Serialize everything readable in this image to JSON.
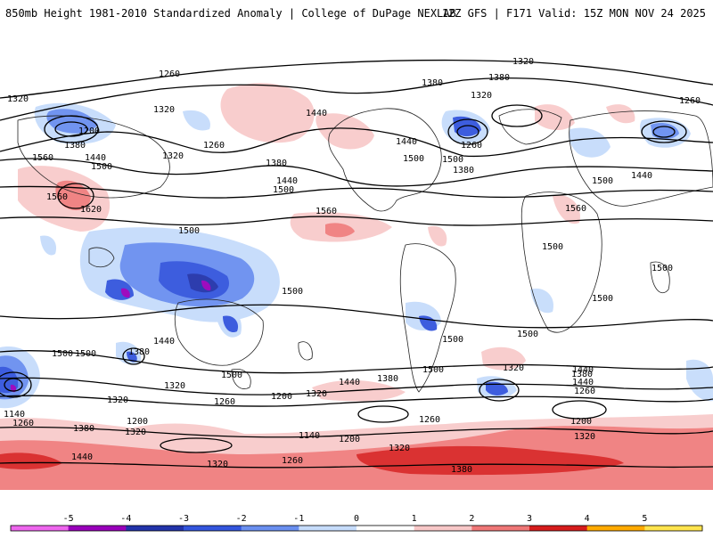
{
  "header": {
    "title": "850mb Height 1981-2010 Standardized Anomaly | College of DuPage NEXLAB",
    "run": "12Z GFS | F171 Valid: 15Z MON NOV 24 2025"
  },
  "colorbar": {
    "ticks": [
      "-5",
      "-4",
      "-3",
      "-2",
      "-1",
      "0",
      "1",
      "2",
      "3",
      "4",
      "5"
    ],
    "colors": [
      "#ee66ee",
      "#9900bb",
      "#2233aa",
      "#3355dd",
      "#6a8ff0",
      "#c6dcfb",
      "#ffffff",
      "#f8c8c8",
      "#ef7777",
      "#d61c1c",
      "#ffaa00",
      "#ffe44d"
    ]
  },
  "contour_labels": [
    "1320",
    "1260",
    "1380",
    "1320",
    "1380",
    "1320",
    "1260",
    "1320",
    "1200",
    "1380",
    "1440",
    "1500",
    "1560",
    "1620",
    "1560",
    "1260",
    "1320",
    "1440",
    "1380",
    "1500",
    "1440",
    "1500",
    "1440",
    "1500",
    "1260",
    "1380",
    "1440",
    "1500",
    "1560",
    "1560",
    "1500",
    "1500",
    "1500",
    "1500",
    "1500",
    "1500",
    "1500",
    "1440",
    "1380",
    "1500",
    "1380",
    "1440",
    "1320",
    "1320",
    "1260",
    "1200",
    "1320",
    "1440",
    "1500",
    "1500",
    "1500",
    "1440",
    "1380",
    "1320",
    "1260",
    "1200",
    "1140",
    "1260",
    "1200",
    "1380",
    "1320",
    "1140",
    "1200",
    "1260",
    "1320",
    "1440",
    "1320",
    "1260",
    "1320",
    "1380"
  ]
}
